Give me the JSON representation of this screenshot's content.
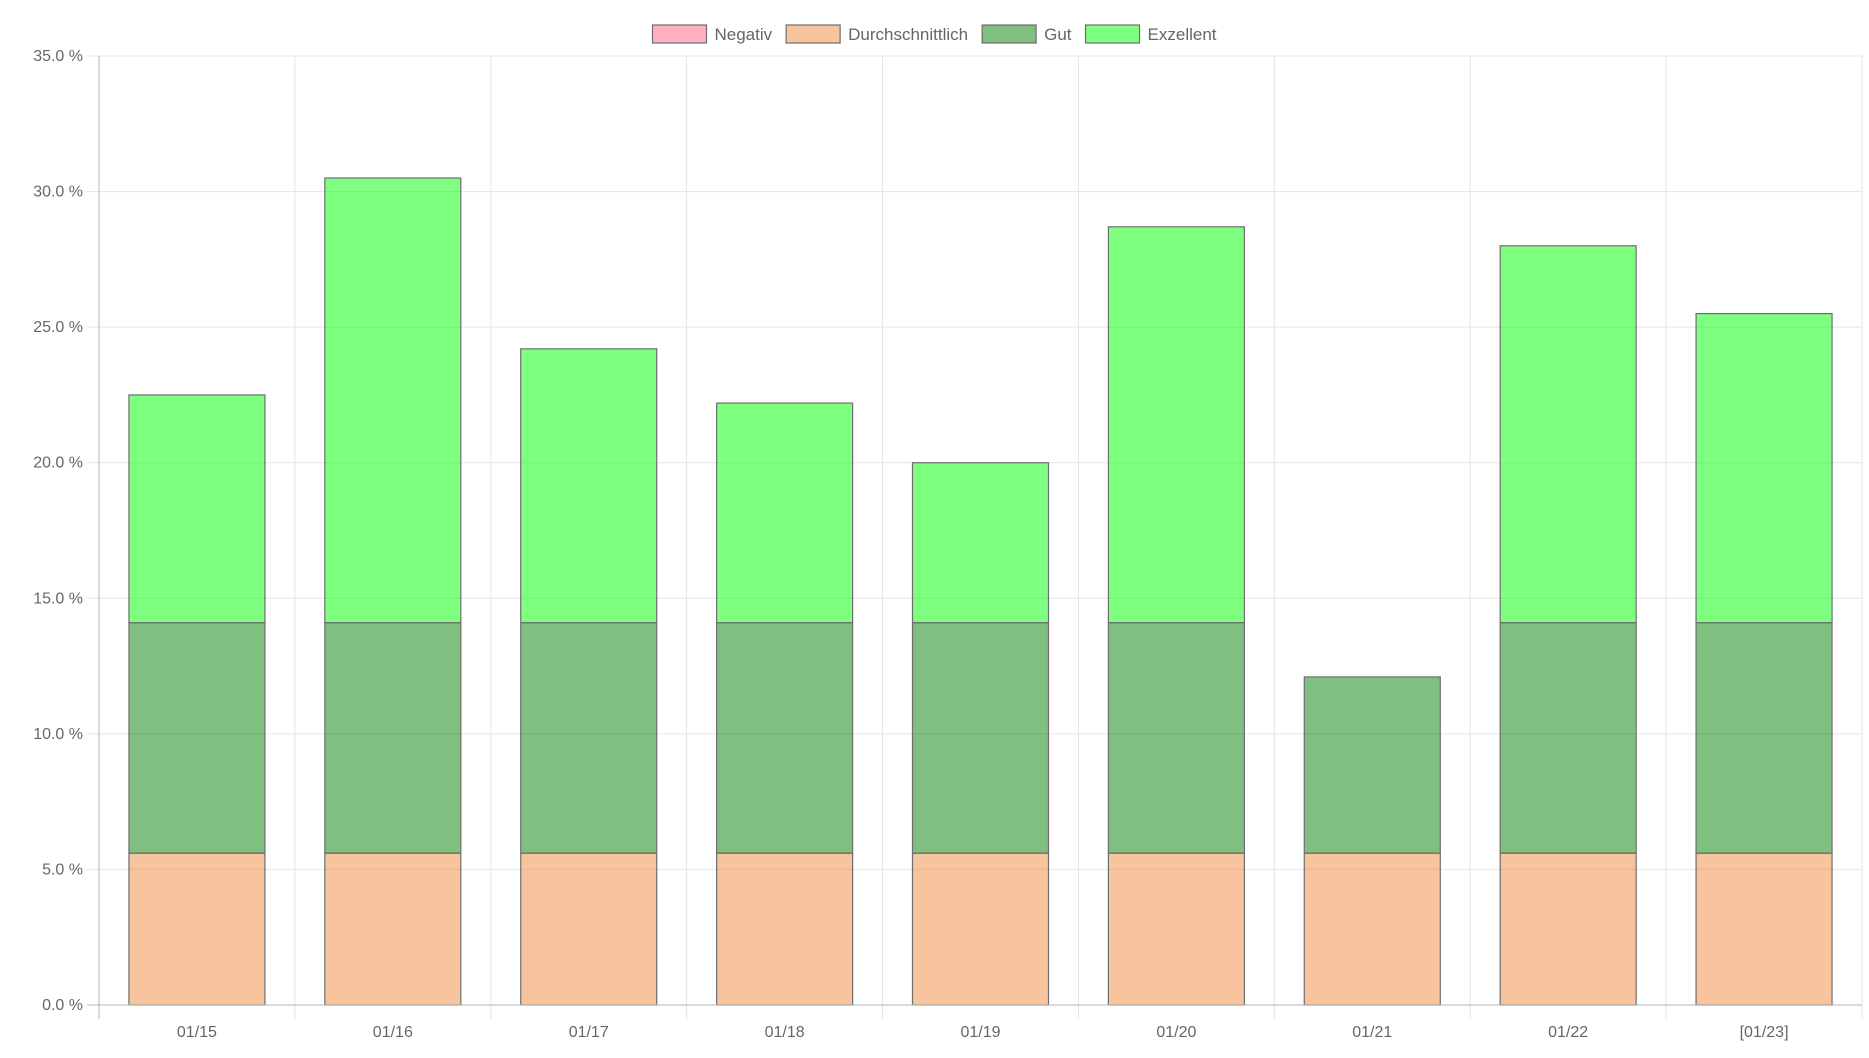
{
  "chart_data": {
    "type": "bar",
    "stacked": true,
    "categories": [
      "01/15",
      "01/16",
      "01/17",
      "01/18",
      "01/19",
      "01/20",
      "01/21",
      "01/22",
      "[01/23]"
    ],
    "series": [
      {
        "name": "Negativ",
        "color": "#ff6384",
        "values": [
          0,
          0,
          0,
          0,
          0,
          0,
          0,
          0,
          0
        ]
      },
      {
        "name": "Durchschnittlich",
        "color": "#f08a3c",
        "values": [
          5.6,
          5.6,
          5.6,
          5.6,
          5.6,
          5.6,
          5.6,
          5.6,
          5.6
        ]
      },
      {
        "name": "Gut",
        "color": "#008000",
        "values": [
          8.5,
          8.5,
          8.5,
          8.5,
          8.5,
          8.5,
          6.5,
          8.5,
          8.5
        ]
      },
      {
        "name": "Exzellent",
        "color": "#00ff00",
        "values": [
          8.4,
          16.4,
          10.1,
          8.1,
          5.9,
          14.6,
          0,
          13.9,
          11.4
        ]
      }
    ],
    "y_ticks": [
      "0.0 %",
      "5.0 %",
      "10.0 %",
      "15.0 %",
      "20.0 %",
      "25.0 %",
      "30.0 %",
      "35.0 %"
    ],
    "ylim": [
      0,
      35
    ],
    "y_step": 5,
    "grid": true,
    "legend_position": "top-center",
    "title": "",
    "xlabel": "",
    "ylabel": ""
  }
}
